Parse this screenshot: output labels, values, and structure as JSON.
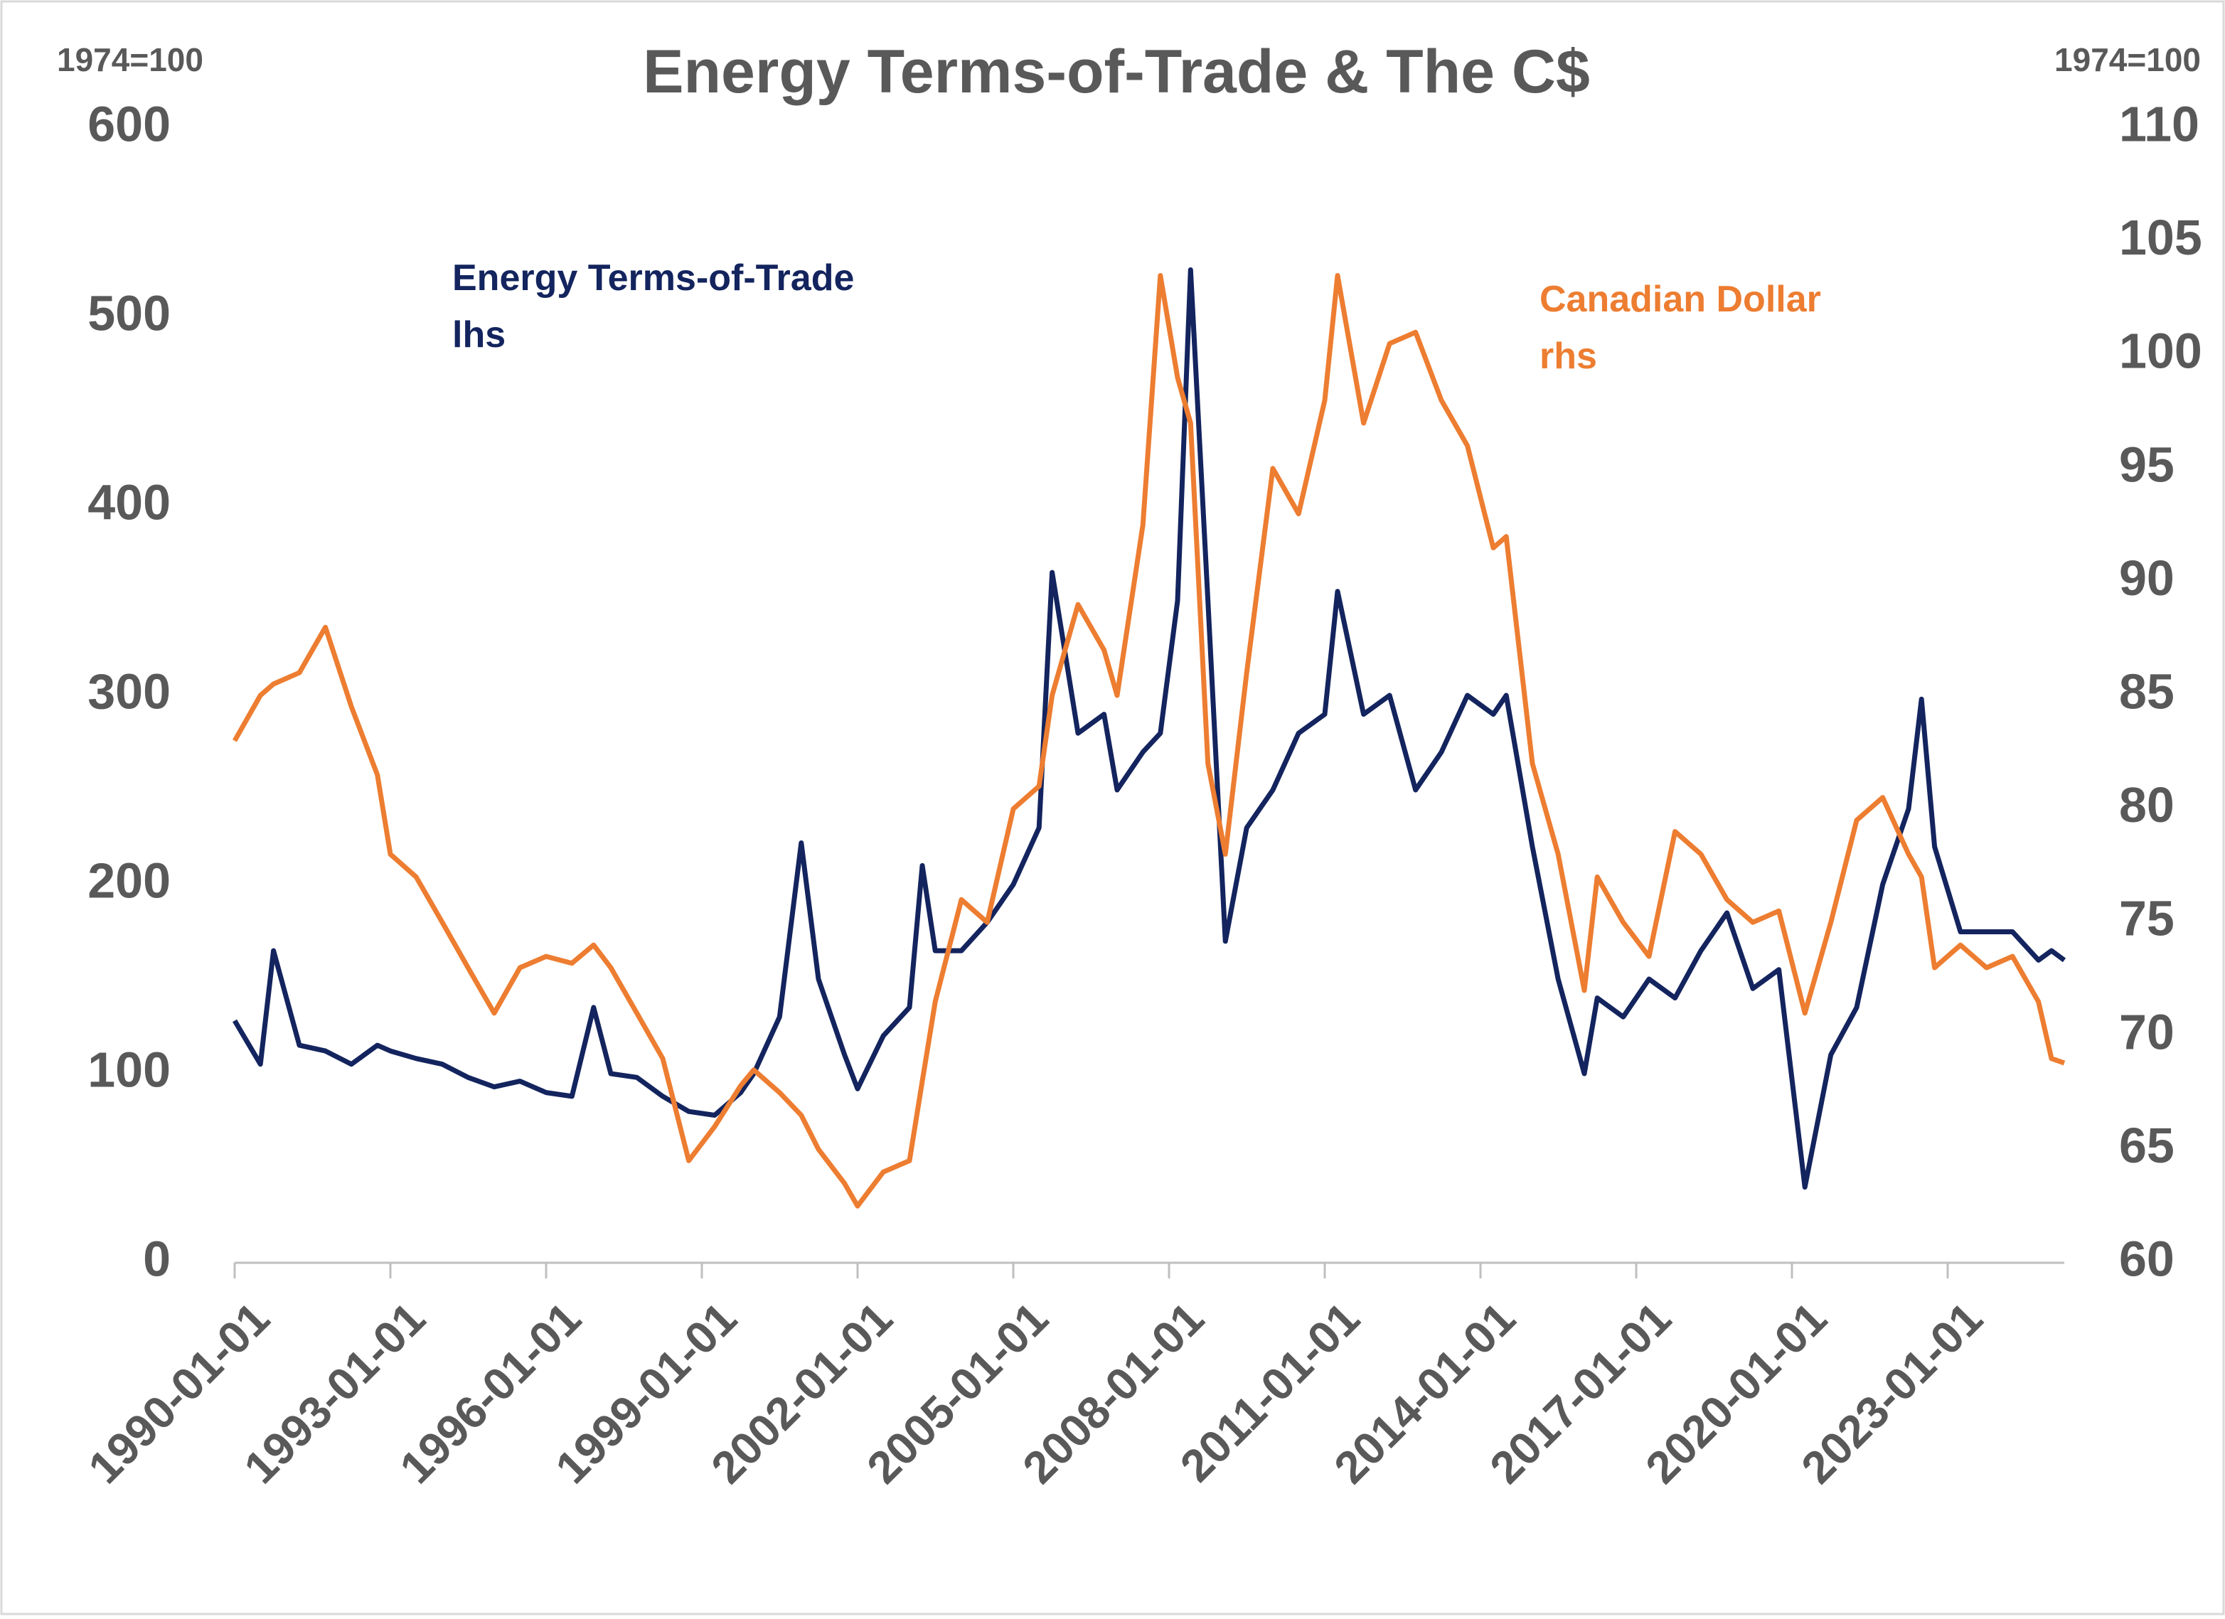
{
  "chart_data": {
    "type": "line",
    "title": "Energy Terms-of-Trade & The C$",
    "ylabel": "1974=100",
    "y2label": "1974=100",
    "x": [
      "1990-01-01",
      "1990-07-01",
      "1990-10-01",
      "1991-04-01",
      "1991-10-01",
      "1992-04-01",
      "1992-10-01",
      "1993-01-01",
      "1993-07-01",
      "1994-01-01",
      "1994-07-01",
      "1995-01-01",
      "1995-07-01",
      "1996-01-01",
      "1996-07-01",
      "1996-12-01",
      "1997-04-01",
      "1997-10-01",
      "1998-04-01",
      "1998-10-01",
      "1999-04-01",
      "1999-10-01",
      "2000-01-01",
      "2000-07-01",
      "2000-12-01",
      "2001-04-01",
      "2001-10-01",
      "2002-01-01",
      "2002-07-01",
      "2003-01-01",
      "2003-04-01",
      "2003-07-01",
      "2004-01-01",
      "2004-07-01",
      "2005-01-01",
      "2005-07-01",
      "2005-10-01",
      "2006-04-01",
      "2006-10-01",
      "2007-01-01",
      "2007-07-01",
      "2007-11-01",
      "2008-03-01",
      "2008-06-01",
      "2008-10-01",
      "2009-02-01",
      "2009-07-01",
      "2010-01-01",
      "2010-07-01",
      "2011-01-01",
      "2011-04-01",
      "2011-10-01",
      "2012-04-01",
      "2012-10-01",
      "2013-04-01",
      "2013-10-01",
      "2014-04-01",
      "2014-07-01",
      "2015-01-01",
      "2015-07-01",
      "2016-01-01",
      "2016-04-01",
      "2016-10-01",
      "2017-04-01",
      "2017-10-01",
      "2018-04-01",
      "2018-10-01",
      "2019-04-01",
      "2019-10-01",
      "2020-04-01",
      "2020-10-01",
      "2021-04-01",
      "2021-10-01",
      "2022-04-01",
      "2022-07-01",
      "2022-10-01",
      "2023-04-01",
      "2023-10-01",
      "2024-04-01",
      "2024-10-01",
      "2025-01-01",
      "2025-04-01"
    ],
    "series": [
      {
        "name": "Energy Terms-of-Trade",
        "side": "lhs",
        "color": "#13245e",
        "values": [
          128,
          105,
          165,
          115,
          112,
          105,
          115,
          112,
          108,
          105,
          98,
          93,
          96,
          90,
          88,
          135,
          100,
          98,
          88,
          80,
          78,
          90,
          100,
          130,
          222,
          150,
          110,
          92,
          120,
          135,
          210,
          165,
          165,
          180,
          200,
          230,
          365,
          280,
          290,
          250,
          270,
          280,
          350,
          525,
          350,
          170,
          230,
          250,
          280,
          290,
          355,
          290,
          300,
          250,
          270,
          300,
          290,
          300,
          220,
          150,
          100,
          140,
          130,
          150,
          140,
          165,
          185,
          145,
          155,
          40,
          110,
          135,
          200,
          240,
          298,
          220,
          175,
          175,
          175,
          160,
          165,
          160
        ]
      },
      {
        "name": "Canadian Dollar",
        "side": "rhs",
        "color": "#ed7d31",
        "axis": "y2",
        "values": [
          83,
          85,
          85.5,
          86,
          88,
          84.5,
          81.5,
          78,
          77,
          75,
          73,
          71,
          73,
          73.5,
          73.2,
          74,
          73,
          71,
          69,
          64.5,
          66,
          67.8,
          68.5,
          67.5,
          66.5,
          65,
          63.5,
          62.5,
          64,
          64.5,
          68,
          71.5,
          76,
          75,
          80,
          81,
          85,
          89,
          87,
          85,
          92.5,
          103.5,
          99,
          97,
          82,
          78,
          86,
          95,
          93,
          98,
          103.5,
          97,
          100.5,
          101,
          98,
          96,
          91.5,
          92,
          82,
          78,
          72,
          77,
          75,
          73.5,
          79,
          78,
          76,
          75,
          75.5,
          71,
          75,
          79.5,
          80.5,
          78,
          77,
          73,
          74,
          73,
          73.5,
          71.5,
          69,
          68.8
        ]
      }
    ],
    "xlim": [
      "1990-01-01",
      "2025-04-01"
    ],
    "xticks": [
      "1990-01-01",
      "1993-01-01",
      "1996-01-01",
      "1999-01-01",
      "2002-01-01",
      "2005-01-01",
      "2008-01-01",
      "2011-01-01",
      "2014-01-01",
      "2017-01-01",
      "2020-01-01",
      "2023-01-01"
    ],
    "ylim": [
      0,
      600
    ],
    "yticks": [
      0,
      100,
      200,
      300,
      400,
      500,
      600
    ],
    "y2lim": [
      60,
      110
    ],
    "y2ticks": [
      60,
      65,
      70,
      75,
      80,
      85,
      90,
      95,
      100,
      105,
      110
    ]
  }
}
